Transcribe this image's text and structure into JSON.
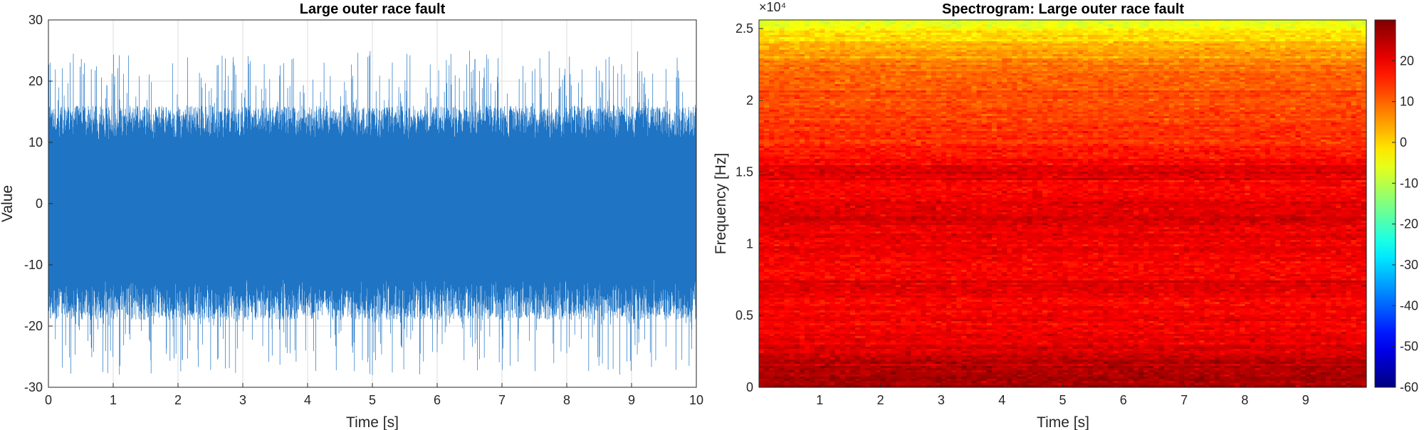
{
  "chart_data": [
    {
      "type": "line",
      "title": "Large outer race fault",
      "xlabel": "Time [s]",
      "ylabel": "Value",
      "xlim": [
        0,
        10
      ],
      "ylim": [
        -30,
        30
      ],
      "xticks": [
        0,
        1,
        2,
        3,
        4,
        5,
        6,
        7,
        8,
        9,
        10
      ],
      "xtick_labels": [
        "0",
        "1",
        "2",
        "3",
        "4",
        "5",
        "6",
        "7",
        "8",
        "9",
        "10"
      ],
      "yticks": [
        -30,
        -20,
        -10,
        0,
        10,
        20,
        30
      ],
      "ytick_labels": [
        "-30",
        "-20",
        "-10",
        "0",
        "10",
        "20",
        "30"
      ],
      "grid": true,
      "line_color": "#1f74c4",
      "series": [
        {
          "name": "",
          "description_note": "",
          "typical_range": [
            -19,
            16
          ],
          "peak_max": 25,
          "peak_min": -28
        }
      ]
    },
    {
      "type": "heatmap",
      "title": "Spectrogram: Large outer race fault",
      "xlabel": "Time [s]",
      "ylabel": "Frequency [Hz]",
      "xlim": [
        0,
        10
      ],
      "ylim": [
        0,
        25600
      ],
      "y_exponent_label": "×10⁴",
      "xticks": [
        1,
        2,
        3,
        4,
        5,
        6,
        7,
        8,
        9
      ],
      "xtick_labels": [
        "1",
        "2",
        "3",
        "4",
        "5",
        "6",
        "7",
        "8",
        "9"
      ],
      "yticks": [
        0,
        5000,
        10000,
        15000,
        20000,
        25000
      ],
      "ytick_labels": [
        "0",
        "0.5",
        "1",
        "1.5",
        "2",
        "2.5"
      ],
      "colormap": "jet",
      "clim": [
        -60,
        30
      ],
      "colorbar_ticks": [
        -60,
        -50,
        -40,
        -30,
        -20,
        -10,
        0,
        10,
        20
      ],
      "colorbar_tick_labels": [
        "-60",
        "-50",
        "-40",
        "-30",
        "-20",
        "-10",
        "0",
        "10",
        "20"
      ],
      "power_profile_db": [
        {
          "freq": 0,
          "db": 27
        },
        {
          "freq": 1000,
          "db": 26
        },
        {
          "freq": 2000,
          "db": 24
        },
        {
          "freq": 3000,
          "db": 22
        },
        {
          "freq": 4000,
          "db": 19
        },
        {
          "freq": 5000,
          "db": 20
        },
        {
          "freq": 6000,
          "db": 19
        },
        {
          "freq": 7000,
          "db": 21
        },
        {
          "freq": 8000,
          "db": 19
        },
        {
          "freq": 9000,
          "db": 19
        },
        {
          "freq": 10000,
          "db": 20
        },
        {
          "freq": 11000,
          "db": 20
        },
        {
          "freq": 12000,
          "db": 23
        },
        {
          "freq": 13000,
          "db": 20
        },
        {
          "freq": 14000,
          "db": 19
        },
        {
          "freq": 15000,
          "db": 22
        },
        {
          "freq": 16000,
          "db": 18
        },
        {
          "freq": 17000,
          "db": 16
        },
        {
          "freq": 18000,
          "db": 15
        },
        {
          "freq": 19000,
          "db": 13
        },
        {
          "freq": 20000,
          "db": 12
        },
        {
          "freq": 21000,
          "db": 11
        },
        {
          "freq": 22000,
          "db": 9
        },
        {
          "freq": 23000,
          "db": 6
        },
        {
          "freq": 24000,
          "db": 2
        },
        {
          "freq": 25000,
          "db": -4
        },
        {
          "freq": 25600,
          "db": -6
        }
      ]
    }
  ]
}
